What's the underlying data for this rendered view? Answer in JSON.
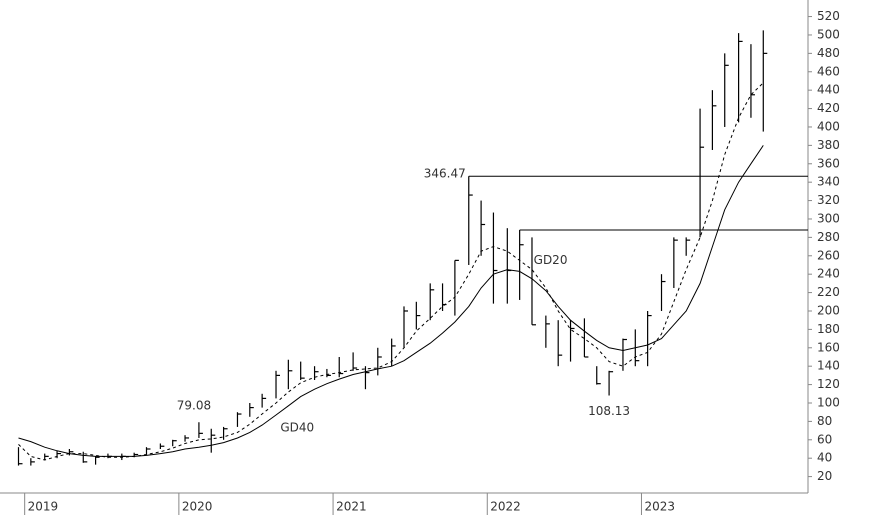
{
  "chart_data": {
    "type": "ohlc",
    "color": "#000000",
    "x": [
      2018.96,
      2019.04,
      2019.13,
      2019.21,
      2019.29,
      2019.38,
      2019.46,
      2019.54,
      2019.63,
      2019.71,
      2019.79,
      2019.88,
      2019.96,
      2020.04,
      2020.13,
      2020.21,
      2020.29,
      2020.38,
      2020.46,
      2020.54,
      2020.63,
      2020.71,
      2020.79,
      2020.88,
      2020.96,
      2021.04,
      2021.13,
      2021.21,
      2021.29,
      2021.38,
      2021.46,
      2021.54,
      2021.63,
      2021.71,
      2021.79,
      2021.88,
      2021.96,
      2022.04,
      2022.13,
      2022.21,
      2022.29,
      2022.38,
      2022.46,
      2022.54,
      2022.63,
      2022.71,
      2022.79,
      2022.88,
      2022.96,
      2023.04,
      2023.13,
      2023.21,
      2023.29,
      2023.38,
      2023.46,
      2023.54,
      2023.63,
      2023.71,
      2023.79
    ],
    "low": [
      32,
      32,
      38,
      40,
      43,
      35,
      33,
      40,
      38,
      41,
      44,
      50,
      53,
      58,
      62,
      46,
      60,
      74,
      85,
      95,
      105,
      115,
      125,
      125,
      128,
      128,
      135,
      115,
      130,
      140,
      160,
      180,
      190,
      200,
      195,
      250,
      260,
      208,
      208,
      212,
      185,
      160,
      140,
      145,
      150,
      120,
      108.13,
      135,
      140,
      140,
      200,
      225,
      260,
      280,
      375,
      400,
      405,
      410,
      395
    ],
    "high": [
      52,
      40,
      45,
      48,
      50,
      47,
      42,
      45,
      45,
      46,
      52,
      56,
      60,
      65,
      79.08,
      72,
      74,
      90,
      100,
      110,
      135,
      147,
      145,
      140,
      137,
      150,
      155,
      140,
      160,
      170,
      205,
      210,
      230,
      230,
      255,
      346.47,
      320,
      307,
      290,
      288,
      280,
      195,
      190,
      190,
      192,
      140,
      135,
      170,
      180,
      200,
      240,
      280,
      280,
      420,
      440,
      480,
      502,
      490,
      505
    ],
    "close": [
      34,
      36,
      42,
      45,
      47,
      36,
      41,
      42,
      42,
      44,
      50,
      53,
      59,
      62,
      67,
      65,
      72,
      88,
      95,
      105,
      130,
      135,
      127,
      134,
      130,
      132,
      138,
      133,
      150,
      162,
      200,
      195,
      223,
      207,
      255,
      326,
      294,
      244,
      244,
      272,
      185,
      186,
      152,
      181,
      150,
      121,
      134,
      169,
      146,
      195,
      232,
      277,
      277,
      378,
      423,
      467,
      493,
      435,
      480
    ],
    "series": [
      {
        "name": "GD20",
        "color": "#000000",
        "dashed": true,
        "values": [
          55,
          42,
          38,
          42,
          45,
          45,
          43,
          41,
          41,
          42,
          44,
          47,
          51,
          56,
          60,
          61,
          63,
          68,
          77,
          88,
          100,
          112,
          122,
          128,
          131,
          133,
          136,
          137,
          138,
          145,
          160,
          178,
          192,
          205,
          215,
          240,
          265,
          270,
          265,
          255,
          245,
          225,
          200,
          180,
          170,
          160,
          145,
          140,
          150,
          155,
          175,
          210,
          245,
          280,
          320,
          370,
          410,
          435,
          448
        ]
      },
      {
        "name": "GD40",
        "color": "#000000",
        "dashed": false,
        "values": [
          62,
          58,
          52,
          48,
          45,
          43,
          42,
          42,
          42,
          42,
          43,
          45,
          47,
          50,
          52,
          54,
          57,
          62,
          68,
          76,
          87,
          97,
          107,
          115,
          121,
          126,
          131,
          134,
          137,
          140,
          146,
          155,
          165,
          176,
          188,
          205,
          225,
          240,
          245,
          243,
          235,
          222,
          205,
          190,
          178,
          168,
          160,
          157,
          160,
          163,
          170,
          185,
          200,
          230,
          270,
          310,
          340,
          360,
          380
        ]
      }
    ],
    "annotations": [
      {
        "x": 2021.88,
        "y": 346.47,
        "anchor": "left"
      },
      {
        "x": 2022.79,
        "y": 108.13,
        "anchor": "below"
      },
      {
        "x": 2020.13,
        "y": 79.08,
        "anchor": "above"
      }
    ],
    "hlines": [
      {
        "x": 2021.88,
        "y": 346.47
      },
      {
        "x": 2022.21,
        "y": 288
      }
    ],
    "xlim": [
      2018.84,
      2024.08
    ],
    "xticks": [
      2019,
      2020,
      2021,
      2022,
      2023
    ],
    "ylim": [
      0,
      538
    ],
    "yticks": [
      20,
      40,
      60,
      80,
      100,
      120,
      140,
      160,
      180,
      200,
      220,
      240,
      260,
      280,
      300,
      320,
      340,
      360,
      380,
      400,
      420,
      440,
      460,
      480,
      500,
      520
    ],
    "grid": false
  }
}
